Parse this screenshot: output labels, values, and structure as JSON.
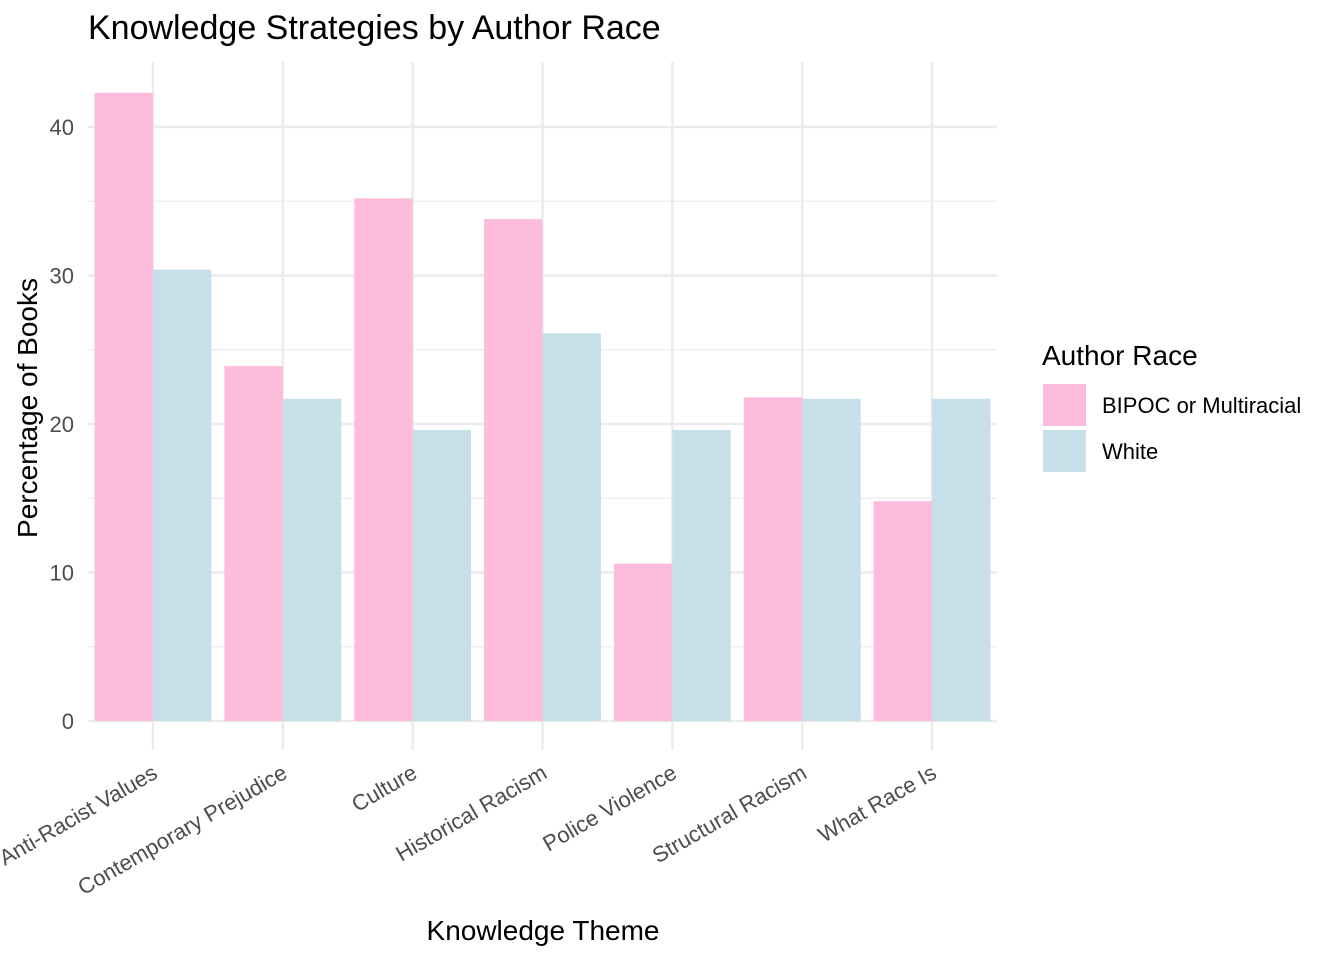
{
  "chart_data": {
    "type": "bar",
    "title": "Knowledge Strategies by Author Race",
    "xlabel": "Knowledge Theme",
    "ylabel": "Percentage of Books",
    "categories": [
      "Anti-Racist Values",
      "Contemporary Prejudice",
      "Culture",
      "Historical Racism",
      "Police Violence",
      "Structural Racism",
      "What Race Is"
    ],
    "series": [
      {
        "name": "BIPOC or Multiracial",
        "color": "#FDBCDB",
        "values": [
          42.3,
          23.9,
          35.2,
          33.8,
          10.6,
          21.8,
          14.8
        ]
      },
      {
        "name": "White",
        "color": "#C6DFE9",
        "values": [
          30.4,
          21.7,
          19.6,
          26.1,
          19.6,
          21.7,
          21.7
        ]
      }
    ],
    "ylim": [
      0,
      44.4
    ],
    "yticks": [
      0,
      10,
      20,
      30,
      40
    ],
    "grid": true,
    "legend": {
      "title": "Author Race",
      "position": "right"
    }
  }
}
